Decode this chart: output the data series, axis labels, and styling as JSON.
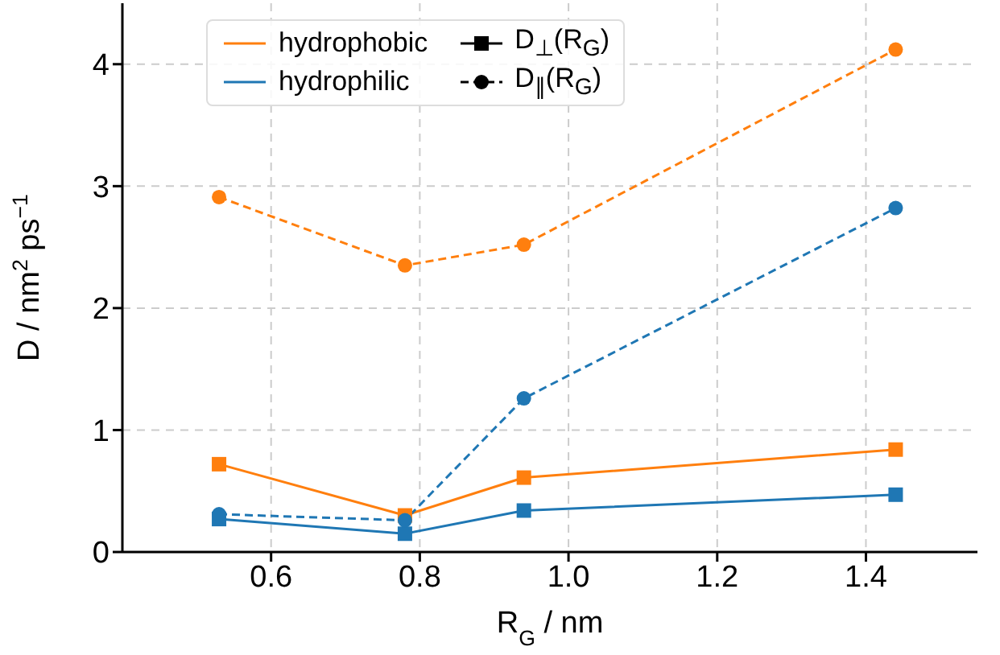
{
  "chart_data": {
    "type": "line",
    "xlabel": "R$_{G}$ / nm",
    "ylabel": "D / nm$^{2}$ ps$^{−1}$",
    "xlim": [
      0.4,
      1.55
    ],
    "xticks": [
      0.6,
      0.8,
      {
        "value": 1,
        "label": "1.0"
      },
      1.2,
      1.4
    ],
    "ylim": [
      0,
      4.5
    ],
    "yticks": [
      0,
      1,
      2,
      3,
      4
    ],
    "grid": true,
    "x": [
      0.53,
      0.78,
      0.94,
      1.44
    ],
    "series": [
      {
        "color": "#ff7f0e",
        "values": [
          0.72,
          0.3,
          0.61,
          0.84
        ],
        "marker": "square",
        "line_style": "solid"
      },
      {
        "color": "#ff7f0e",
        "values": [
          2.91,
          2.35,
          2.52,
          4.12
        ],
        "marker": "circle",
        "line_style": "dashed"
      },
      {
        "color": "#1f77b4",
        "values": [
          0.27,
          0.15,
          0.34,
          0.47
        ],
        "marker": "square",
        "line_style": "solid"
      },
      {
        "color": "#1f77b4",
        "values": [
          0.31,
          0.26,
          1.26,
          2.82
        ],
        "marker": "circle",
        "line_style": "dashed"
      }
    ],
    "annotations": [
      "hydrophobic",
      "hydrophilic",
      "D$_{⊥}$(R$_{G}$)",
      "D$_{∥}$(R$_{G}$)"
    ]
  }
}
